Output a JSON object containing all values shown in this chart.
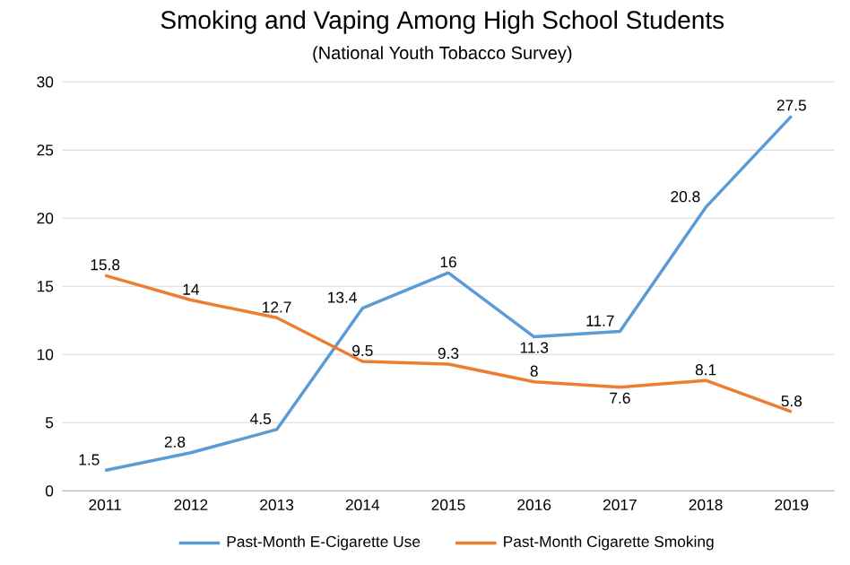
{
  "chart_data": {
    "type": "line",
    "title": "Smoking and Vaping Among High School Students",
    "subtitle": "(National Youth Tobacco Survey)",
    "categories": [
      "2011",
      "2012",
      "2013",
      "2014",
      "2015",
      "2016",
      "2017",
      "2018",
      "2019"
    ],
    "series": [
      {
        "name": "Past-Month E-Cigarette Use",
        "color": "#5b9bd5",
        "values": [
          1.5,
          2.8,
          4.5,
          13.4,
          16,
          11.3,
          11.7,
          20.8,
          27.5
        ]
      },
      {
        "name": "Past-Month Cigarette Smoking",
        "color": "#ed7d31",
        "values": [
          15.8,
          14,
          12.7,
          9.5,
          9.3,
          8,
          7.6,
          8.1,
          5.8
        ]
      }
    ],
    "ylim": [
      0,
      30
    ],
    "yticks": [
      0,
      5,
      10,
      15,
      20,
      25,
      30
    ],
    "grid": "y",
    "legend": "bottom",
    "data_labels": true,
    "marker": "none",
    "line_style": "solid"
  }
}
